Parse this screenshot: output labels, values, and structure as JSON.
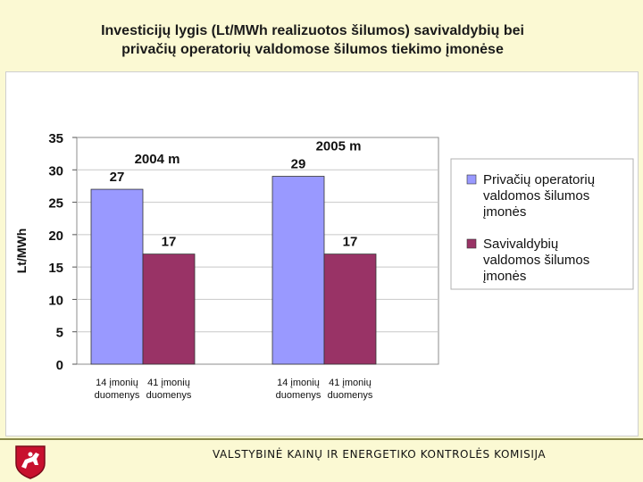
{
  "title_line1": "Investicijų lygis (Lt/MWh realizuotos šilumos) savivaldybių bei",
  "title_line2": "privačių operatorių valdomose šilumos tiekimo įmonėse",
  "footer": "VALSTYBINĖ KAINŲ IR ENERGETIKO KONTROLĖS KOMISIJA",
  "chart_data": {
    "type": "bar",
    "ylabel": "Lt/MWh",
    "ylim": [
      0,
      35
    ],
    "yticks": [
      0,
      5,
      10,
      15,
      20,
      25,
      30,
      35
    ],
    "groups": [
      {
        "label": "2004 m",
        "categories": [
          [
            "14 įmonių",
            "duomenys"
          ],
          [
            "41 įmonių",
            "duomenys"
          ]
        ],
        "values": [
          27,
          17
        ]
      },
      {
        "label": "2005 m",
        "categories": [
          [
            "14 įmonių",
            "duomenys"
          ],
          [
            "41 įmonių",
            "duomenys"
          ]
        ],
        "values": [
          29,
          17
        ]
      }
    ],
    "series": [
      {
        "name": [
          "Privačių operatorių",
          "valdomos šilumos",
          "įmonės"
        ],
        "color": "#9999ff"
      },
      {
        "name": [
          "Savivaldybių",
          "valdomos šilumos",
          "įmonės"
        ],
        "color": "#993366"
      }
    ],
    "legend_position": "right",
    "grid": true
  }
}
